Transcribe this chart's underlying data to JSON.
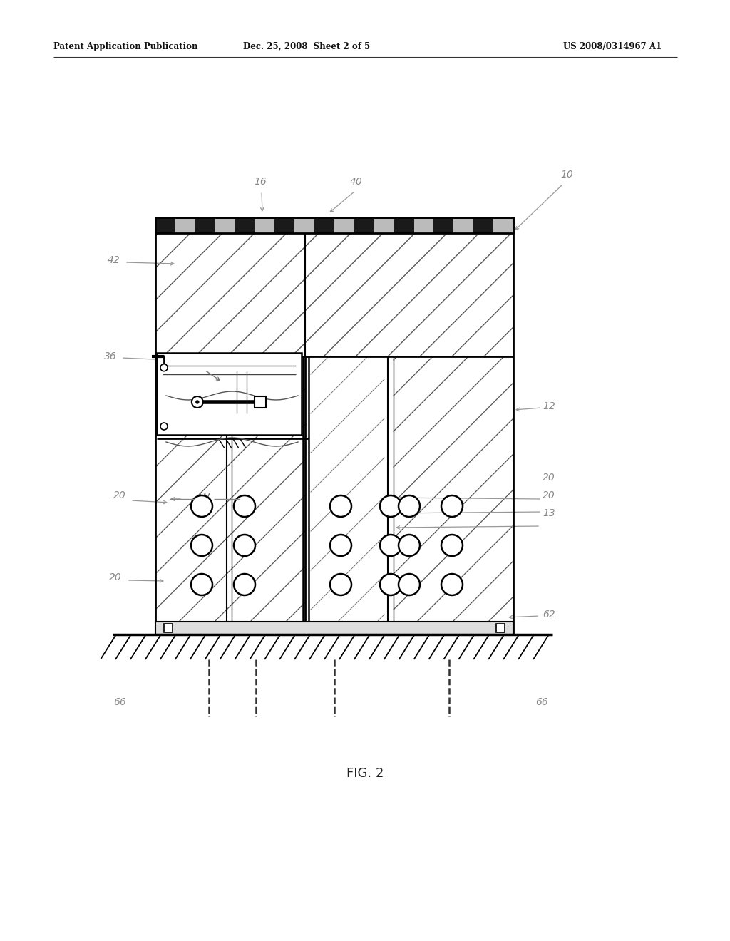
{
  "background_color": "#ffffff",
  "header_left": "Patent Application Publication",
  "header_center": "Dec. 25, 2008  Sheet 2 of 5",
  "header_right": "US 2008/0314967 A1",
  "caption": "FIG. 2",
  "line_color": "#000000",
  "annotation_color": "#888888",
  "lw_heavy": 2.0,
  "lw_medium": 1.5,
  "lw_light": 1.0
}
